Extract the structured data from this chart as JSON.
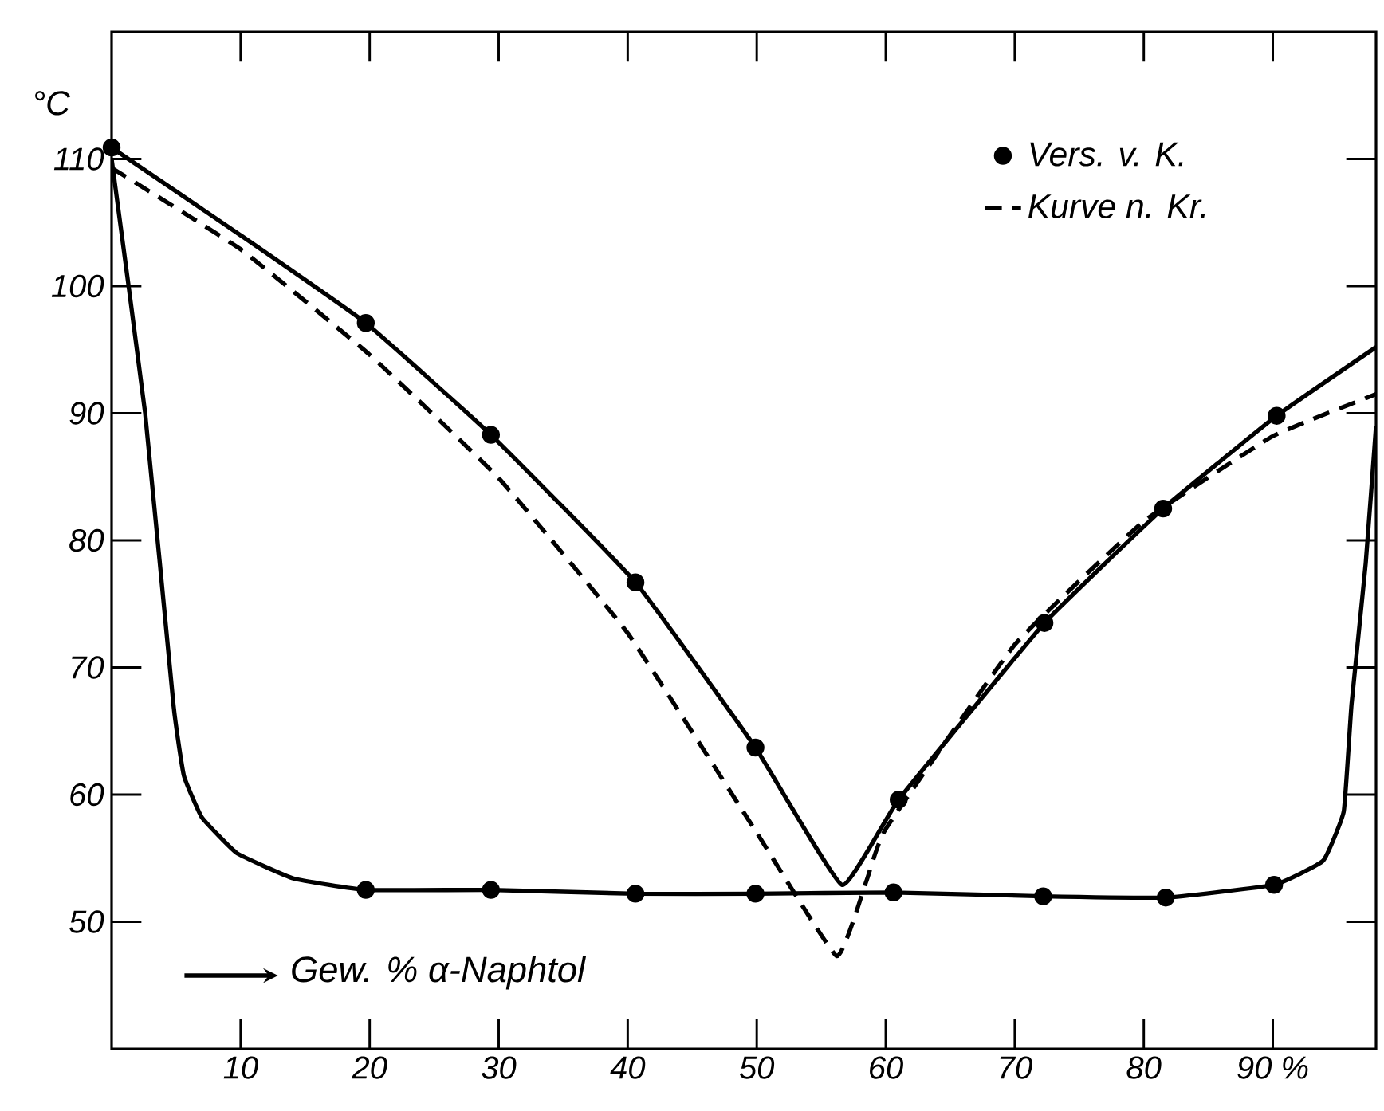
{
  "chart_data": {
    "type": "line",
    "xlabel": "Gew. % α-Naphtol",
    "ylabel": "°C",
    "xlim": [
      0,
      98
    ],
    "ylim": [
      40,
      120
    ],
    "xticks": [
      10,
      20,
      30,
      40,
      50,
      60,
      70,
      80,
      {
        "value": 90,
        "label": "90 %"
      }
    ],
    "yticks": [
      50,
      60,
      70,
      80,
      90,
      100,
      110
    ],
    "legend": "top right",
    "series": [
      {
        "type": "scatter",
        "name": "Vers. v. K.",
        "marker": "circle",
        "color": "#000000",
        "x": [
          0,
          19.7,
          29.4,
          40.6,
          49.9,
          61,
          72.3,
          81.5,
          90.3,
          19.7,
          29.4,
          40.6,
          49.9,
          60.6,
          72.2,
          81.7,
          90.1
        ],
        "values": [
          110.9,
          97.1,
          88.3,
          76.7,
          63.7,
          59.6,
          73.5,
          82.5,
          89.8,
          52.5,
          52.5,
          52.2,
          52.2,
          52.3,
          52.0,
          51.9,
          52.9
        ]
      },
      {
        "name": "Kurve n. Kr.",
        "line_style": "dashed",
        "marker": "none",
        "color": "#000000",
        "x": [
          0,
          10,
          20,
          30,
          40,
          50,
          56.2,
          58.5,
          60,
          70,
          80,
          90,
          98
        ],
        "values": [
          109.3,
          102.9,
          94.6,
          84.9,
          72.7,
          57,
          47.3,
          53.2,
          57.3,
          71.8,
          81.5,
          88.2,
          91.5
        ]
      },
      {
        "line_style": "solid",
        "marker": "none",
        "color": "#000000",
        "x": [
          0,
          10,
          19.7,
          29.4,
          40.6,
          49.9,
          56.6,
          61,
          72.3,
          81.5,
          90.3,
          98
        ],
        "values": [
          110.9,
          104,
          97.1,
          88.3,
          76.7,
          63.7,
          52.9,
          59.6,
          73.5,
          82.5,
          89.8,
          95.2
        ]
      },
      {
        "line_style": "solid",
        "marker": "none",
        "color": "#000000",
        "x": [
          0,
          2.6,
          4.8,
          5.6,
          7,
          9.7,
          14.1,
          19.7,
          29.4,
          40.6,
          49.9,
          60.6,
          72.2,
          81.7,
          90.1,
          93.9,
          95.5,
          96.1,
          97.2,
          98
        ],
        "values": [
          110,
          90,
          67,
          61.5,
          58.2,
          55.4,
          53.4,
          52.5,
          52.5,
          52.2,
          52.2,
          52.3,
          52.0,
          51.9,
          52.9,
          54.8,
          58.7,
          67.1,
          78.2,
          89
        ]
      }
    ]
  }
}
